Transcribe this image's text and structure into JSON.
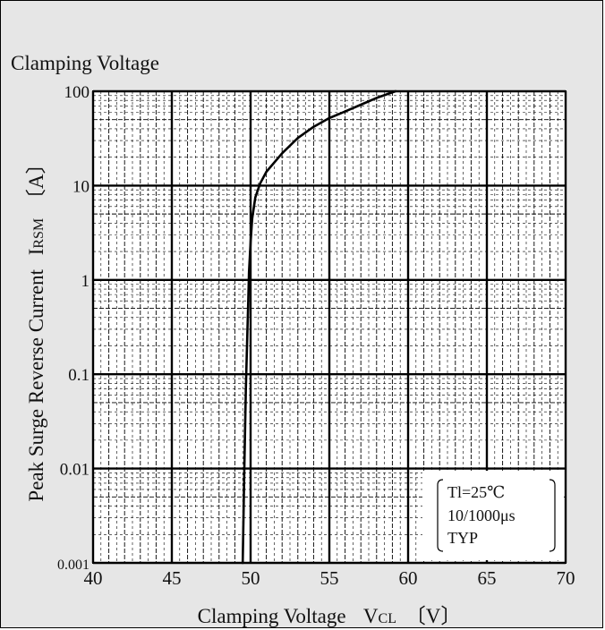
{
  "chart_data": {
    "type": "line",
    "title": "Clamping Voltage",
    "xlabel": {
      "main": "Clamping Voltage",
      "symbol": "V",
      "subscript": "CL",
      "unit": "〔V〕"
    },
    "ylabel": {
      "main": "Peak Surge Reverse Current",
      "symbol": "I",
      "subscript": "RSM",
      "unit": "〔A〕"
    },
    "xlim": [
      40,
      70
    ],
    "ylim": [
      0.001,
      100
    ],
    "yscale": "log",
    "grid": true,
    "x_ticks": [
      40,
      45,
      50,
      55,
      60,
      65,
      70
    ],
    "x_tick_labels": [
      "40",
      "45",
      "50",
      "55",
      "60",
      "65",
      "70"
    ],
    "y_ticks": [
      0.001,
      0.01,
      0.1,
      1,
      10,
      100
    ],
    "y_tick_labels": [
      "0.001",
      "0.01",
      "0.1",
      "1",
      "10",
      "100"
    ],
    "series": [
      {
        "x": [
          49.5,
          49.6,
          49.7,
          49.8,
          49.85,
          49.9,
          50.0,
          50.1,
          50.3,
          50.6,
          51.0,
          52.0,
          53.0,
          54.0,
          55.0,
          56.0,
          57.0,
          58.0,
          59.2
        ],
        "y": [
          0.001,
          0.01,
          0.07,
          0.3,
          0.6,
          1.2,
          2.5,
          4.5,
          7.5,
          10.5,
          14,
          22,
          32,
          42,
          52,
          61,
          72,
          85,
          100
        ],
        "color": "#000000"
      }
    ],
    "annotation": {
      "lines": [
        "Tl=25℃",
        "10/1000μs",
        "TYP"
      ],
      "position": "bottom-right"
    }
  }
}
